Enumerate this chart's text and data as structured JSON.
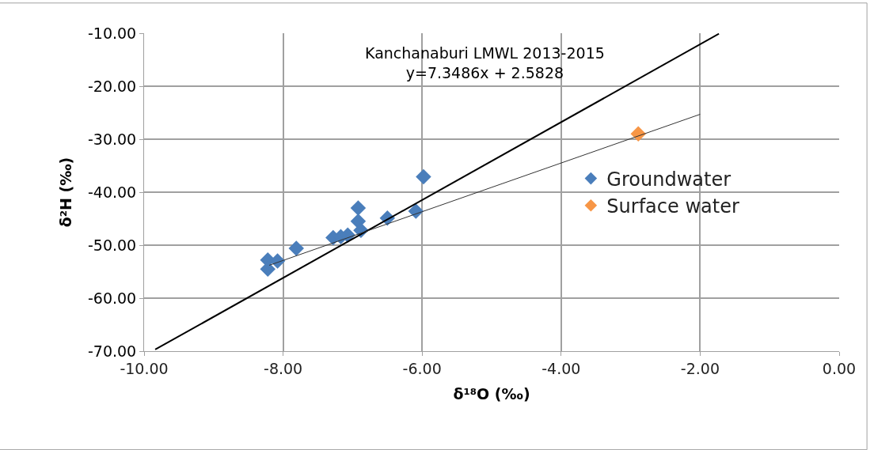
{
  "chart_data": {
    "type": "scatter",
    "xlabel": "δ¹⁸O (‰)",
    "ylabel": "δ²H (‰)",
    "annotations": [
      "Kanchanaburi LMWL 2013-2015\ny=7.3486x + 2.5828"
    ],
    "series": [
      {
        "name": "Groundwater",
        "color": "#4a7ebb",
        "marker": "diamond",
        "x": [
          -8.22,
          -8.22,
          -8.08,
          -7.81,
          -7.28,
          -7.17,
          -7.07,
          -6.92,
          -6.92,
          -6.88,
          -6.5,
          -6.09,
          -5.98
        ],
        "values": [
          -52.8,
          -54.5,
          -53.0,
          -50.6,
          -48.6,
          -48.4,
          -48.1,
          -43.0,
          -45.5,
          -47.2,
          -44.9,
          -43.6,
          -37.1
        ]
      },
      {
        "name": "Surface water",
        "color": "#f79646",
        "marker": "diamond",
        "x": [
          -2.89
        ],
        "values": [
          -29.0
        ]
      },
      {
        "type": "line",
        "color": "#000000",
        "line_style": "solid",
        "marker": "none",
        "x": [
          -9.84,
          -1.73
        ],
        "values": [
          -69.7,
          -10.1
        ]
      },
      {
        "type": "line",
        "color": "#333333",
        "line_style": "solid",
        "marker": "none",
        "x": [
          -8.2,
          -2.0
        ],
        "values": [
          -53.8,
          -25.3
        ]
      }
    ],
    "xlim": [
      -10,
      0
    ],
    "ylim": [
      -70,
      -10
    ],
    "xticks": [
      {
        "value": -10,
        "label": "-10.00"
      },
      {
        "value": -8,
        "label": "-8.00"
      },
      {
        "value": -6,
        "label": "-6.00"
      },
      {
        "value": -4,
        "label": "-4.00"
      },
      {
        "value": -2,
        "label": "-2.00"
      },
      {
        "value": 0,
        "label": "0.00"
      }
    ],
    "yticks": [
      {
        "value": -70,
        "label": "-70.00"
      },
      {
        "value": -60,
        "label": "-60.00"
      },
      {
        "value": -50,
        "label": "-50.00"
      },
      {
        "value": -40,
        "label": "-40.00"
      },
      {
        "value": -30,
        "label": "-30.00"
      },
      {
        "value": -20,
        "label": "-20.00"
      },
      {
        "value": -10,
        "label": "-10.00"
      }
    ],
    "grid": true,
    "legend": "right"
  }
}
